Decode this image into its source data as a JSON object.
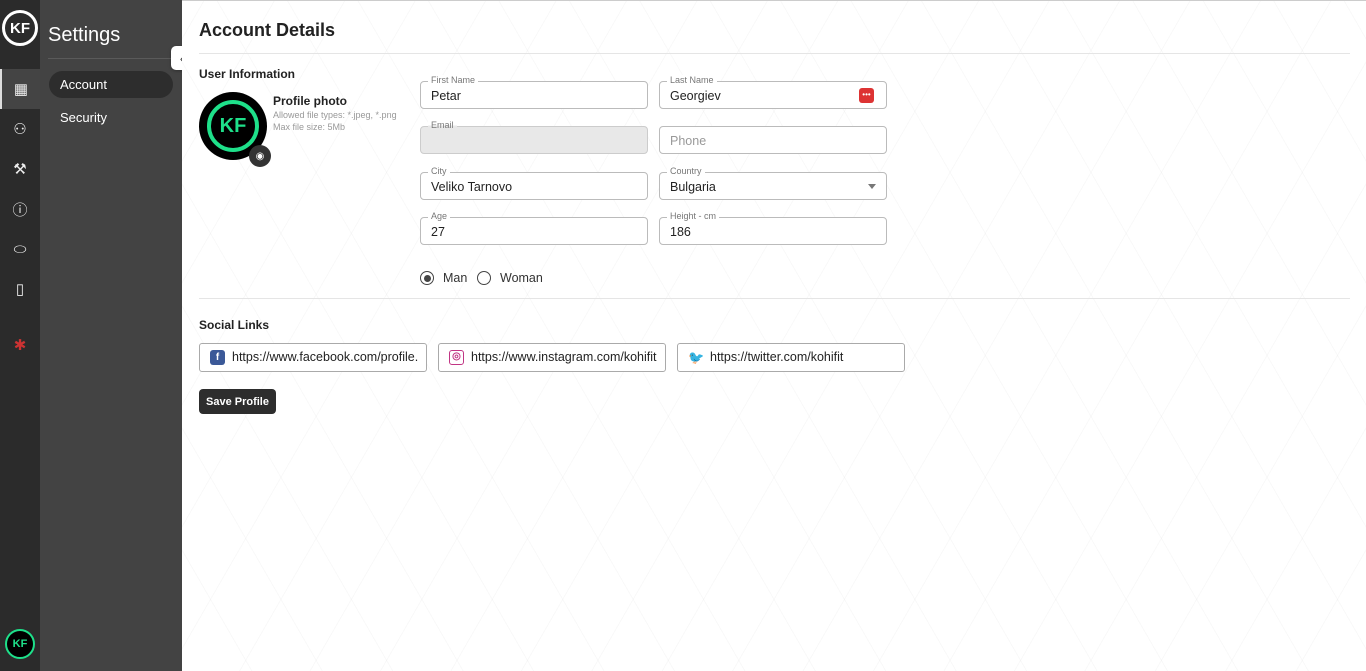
{
  "rail": {
    "logo": "KF",
    "items": [
      {
        "icon": "dashboard-icon",
        "glyph": "▦"
      },
      {
        "icon": "users-icon",
        "glyph": "👥"
      },
      {
        "icon": "dumbbell-icon",
        "glyph": "⚒"
      },
      {
        "icon": "help-icon",
        "glyph": "?"
      },
      {
        "icon": "tag-icon",
        "glyph": "⬭"
      },
      {
        "icon": "document-icon",
        "glyph": "▯"
      },
      {
        "icon": "uk-flag-icon",
        "glyph": "✱"
      }
    ],
    "avatar": "KF"
  },
  "sidebar": {
    "title": "Settings",
    "items": [
      {
        "label": "Account",
        "active": true
      },
      {
        "label": "Security",
        "active": false
      }
    ]
  },
  "main": {
    "title": "Account Details",
    "user_info": "User Information",
    "profile": {
      "title": "Profile photo",
      "allowed": "Allowed file types: *.jpeg, *.png",
      "max": "Max file size: 5Mb",
      "logo": "KF"
    },
    "fields": {
      "first_name": {
        "label": "First Name",
        "value": "Petar"
      },
      "last_name": {
        "label": "Last Name",
        "value": "Georgiev"
      },
      "email": {
        "label": "Email",
        "value": ""
      },
      "phone": {
        "placeholder": "Phone"
      },
      "city": {
        "label": "City",
        "value": "Veliko Tarnovo"
      },
      "country": {
        "label": "Country",
        "value": "Bulgaria"
      },
      "age": {
        "label": "Age",
        "value": "27"
      },
      "height": {
        "label": "Height - cm",
        "value": "186"
      }
    },
    "gender": {
      "options": [
        "Man",
        "Woman"
      ],
      "selected": "Man"
    },
    "social_title": "Social Links",
    "social": {
      "facebook": "https://www.facebook.com/profile.",
      "instagram": "https://www.instagram.com/kohifit",
      "twitter": "https://twitter.com/kohifit"
    },
    "save": "Save Profile"
  },
  "colors": {
    "accent": "#1ee08a",
    "dark": "#2d2d2d",
    "facebook": "#3b5998",
    "instagram": "#c13584",
    "twitter": "#1da1f2"
  }
}
